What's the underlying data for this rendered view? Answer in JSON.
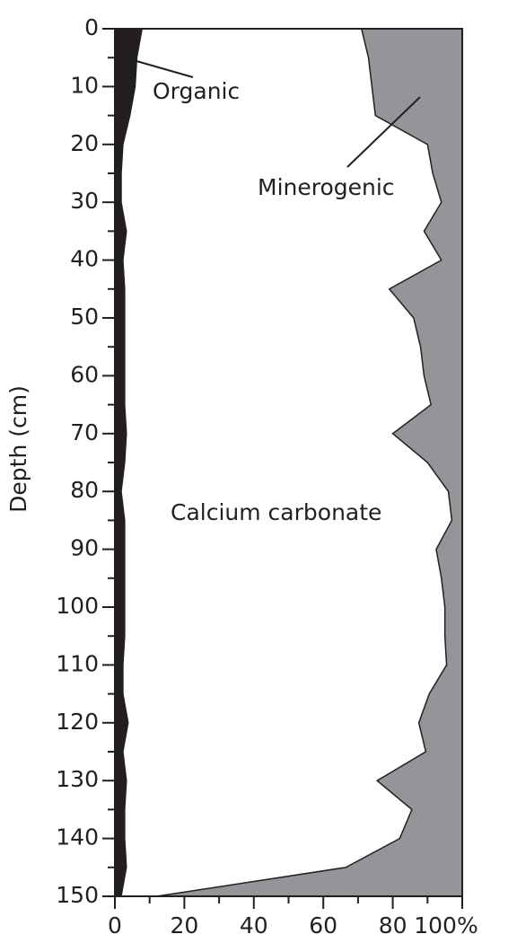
{
  "chart_data": {
    "type": "stacked_area",
    "orientation": "horizontal",
    "ylabel": "Depth (cm)",
    "y": [
      0,
      5,
      10,
      15,
      20,
      25,
      30,
      35,
      40,
      45,
      50,
      55,
      60,
      65,
      70,
      75,
      80,
      85,
      90,
      95,
      100,
      105,
      110,
      115,
      120,
      125,
      130,
      135,
      140,
      145,
      150
    ],
    "series": [
      {
        "name": "Organic",
        "color": "#231f20",
        "values": [
          8,
          6.5,
          6,
          4.5,
          2.5,
          2,
          2,
          3.5,
          2.5,
          3,
          3,
          3,
          3,
          3,
          3.5,
          3,
          2,
          3,
          3,
          3,
          3,
          3,
          2.5,
          2.5,
          4,
          2.5,
          3.5,
          3,
          3,
          3.5,
          2
        ]
      },
      {
        "name": "Calcium carbonate",
        "color": "#ffffff",
        "values": [
          63,
          66.5,
          68,
          70.5,
          87.5,
          89.5,
          92,
          85.5,
          91.5,
          76,
          83,
          85,
          86,
          88,
          76.5,
          87,
          94,
          94,
          89.5,
          91,
          92,
          92,
          93,
          88,
          83.5,
          87,
          72,
          82.5,
          79,
          63,
          10
        ]
      },
      {
        "name": "Minerogenic",
        "color": "#939598",
        "values": [
          29,
          27,
          26,
          25,
          10,
          8.5,
          6,
          11,
          6,
          21,
          14,
          12,
          11,
          9,
          20,
          10,
          4,
          3,
          7.5,
          6,
          5,
          5,
          4.5,
          9.5,
          12.5,
          10.5,
          24.5,
          14.5,
          18,
          33.5,
          88
        ]
      }
    ],
    "xlim": [
      0,
      100
    ],
    "xticks": [
      0,
      20,
      40,
      60,
      80,
      {
        "value": 100,
        "label": "100%"
      }
    ],
    "xticks_minor": [
      10,
      30,
      50,
      70,
      90
    ],
    "ylim": [
      0,
      150
    ],
    "yticks": [
      0,
      10,
      20,
      30,
      40,
      50,
      60,
      70,
      80,
      90,
      100,
      110,
      120,
      130,
      140,
      150
    ],
    "yticks_minor": [
      5,
      15,
      25,
      35,
      45,
      55,
      65,
      75,
      85,
      95,
      105,
      115,
      125,
      135,
      145
    ]
  }
}
